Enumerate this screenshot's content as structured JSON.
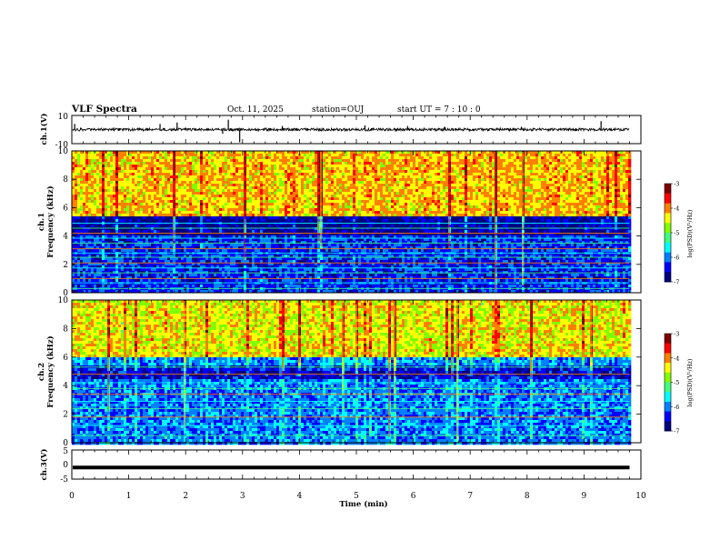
{
  "header": {
    "title": "VLF Spectra",
    "date": "Oct. 11, 2025",
    "station": "station=OUJ",
    "start": "start UT =  7 : 10 : 0"
  },
  "chart_data": [
    {
      "type": "line",
      "name": "waveform-ch1",
      "ylabel": "ch.1(V)",
      "ylim": [
        -10,
        10
      ],
      "yticks": [
        "10",
        "-10"
      ],
      "xlim": [
        0,
        10
      ],
      "data_end_min": 9.8,
      "baseline": 0,
      "noise_amplitude": 1.0,
      "spikes": [
        {
          "t": 0.05,
          "v": 4
        },
        {
          "t": 1.55,
          "v": 4
        },
        {
          "t": 1.85,
          "v": 5
        },
        {
          "t": 2.65,
          "v": -3
        },
        {
          "t": 2.75,
          "v": 7
        },
        {
          "t": 2.95,
          "v": -9
        },
        {
          "t": 3.7,
          "v": 2.5
        },
        {
          "t": 5.15,
          "v": 3
        },
        {
          "t": 5.9,
          "v": 2.5
        },
        {
          "t": 6.55,
          "v": 2
        },
        {
          "t": 7.9,
          "v": 2
        },
        {
          "t": 9.3,
          "v": 6
        }
      ]
    },
    {
      "type": "heatmap",
      "name": "spectrogram-ch1",
      "channel_label": "ch.1",
      "ylabel": "Frequency (kHz)",
      "ylim": [
        0,
        10
      ],
      "yticks": [
        "0",
        "2",
        "4",
        "6",
        "8",
        "10"
      ],
      "xlim": [
        0,
        10
      ],
      "data_end_min": 9.8,
      "value_range": [
        -7,
        -3
      ],
      "upper_band_khz": [
        5.3,
        10
      ],
      "upper_band_level": -4.4,
      "lower_band_level": -6.4,
      "gap_khz": [
        4.0,
        5.3
      ],
      "gap_level": -6.9,
      "lines_khz": [
        0.3,
        0.7,
        1.0,
        1.4,
        1.75,
        2.1,
        2.5,
        2.8,
        3.1,
        3.5,
        3.85,
        4.2,
        4.55,
        4.9
      ],
      "colorbar": {
        "label": "log(PSD)(V²/Hz)",
        "ticks": [
          "-3",
          "-4",
          "-5",
          "-6",
          "-7"
        ]
      }
    },
    {
      "type": "heatmap",
      "name": "spectrogram-ch2",
      "channel_label": "ch.2",
      "ylabel": "Frequency (kHz)",
      "ylim": [
        0,
        10
      ],
      "yticks": [
        "0",
        "2",
        "4",
        "6",
        "8",
        "10"
      ],
      "xlim": [
        0,
        10
      ],
      "data_end_min": 9.8,
      "value_range": [
        -7,
        -3
      ],
      "upper_band_khz": [
        6.0,
        10
      ],
      "upper_band_level": -4.6,
      "lower_band_level": -6.1,
      "gap_khz": [
        4.5,
        5.5
      ],
      "gap_level": -6.6,
      "lines_khz": [
        0.5,
        1.2,
        1.8,
        2.4,
        2.9,
        3.4,
        3.8,
        4.2,
        4.8,
        5.3
      ],
      "colorbar": {
        "label": "log(PSD)(V²/Hz)",
        "ticks": [
          "-3",
          "-4",
          "-5",
          "-6",
          "-7"
        ]
      }
    },
    {
      "type": "line",
      "name": "waveform-ch3",
      "ylabel": "ch.3(V)",
      "ylim": [
        -5,
        5
      ],
      "yticks": [
        "5",
        "0",
        "-5"
      ],
      "xlim": [
        0,
        10
      ],
      "data_end_min": 9.8,
      "baseline": -1.0,
      "noise_amplitude": 0
    }
  ],
  "xaxis": {
    "label": "Time (min)",
    "ticks": [
      "0",
      "1",
      "2",
      "3",
      "4",
      "5",
      "6",
      "7",
      "8",
      "9",
      "10"
    ]
  },
  "colors": {
    "colormap": [
      "#00007f",
      "#0000ff",
      "#0080ff",
      "#00ffff",
      "#40ff80",
      "#80ff00",
      "#ffff00",
      "#ff8000",
      "#ff0000",
      "#7f0000"
    ]
  }
}
